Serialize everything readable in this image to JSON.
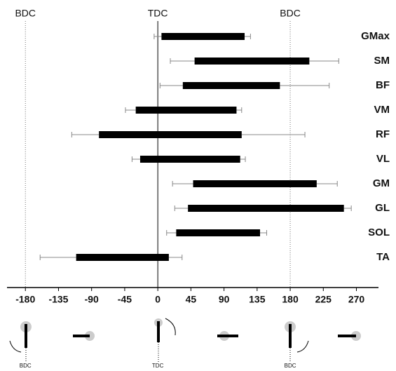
{
  "chart_data": {
    "type": "floating-bar",
    "categories": [
      "GMax",
      "SM",
      "BF",
      "VM",
      "RF",
      "VL",
      "GM",
      "GL",
      "SOL",
      "TA"
    ],
    "starts": [
      5,
      50,
      34,
      -30,
      -80,
      -24,
      48,
      41,
      25,
      -111
    ],
    "ends": [
      118,
      206,
      166,
      107,
      114,
      112,
      216,
      253,
      139,
      15
    ],
    "start_errors": [
      10,
      33,
      31,
      14,
      37,
      11,
      28,
      18,
      13,
      49
    ],
    "end_errors": [
      8,
      40,
      67,
      7,
      86,
      7,
      28,
      10,
      9,
      18
    ],
    "color": "#000000",
    "xlim": [
      -205,
      300
    ],
    "xticks": [
      -180,
      -135,
      -90,
      -45,
      0,
      45,
      90,
      135,
      180,
      225,
      270
    ],
    "reference_lines": [
      {
        "value": -180,
        "label": "BDC",
        "style": "dotted"
      },
      {
        "value": 0,
        "label": "TDC",
        "style": "solid"
      },
      {
        "value": 180,
        "label": "BDC",
        "style": "dotted"
      }
    ],
    "crank_labels": [
      "BDC",
      "TDC",
      "BDC"
    ]
  }
}
